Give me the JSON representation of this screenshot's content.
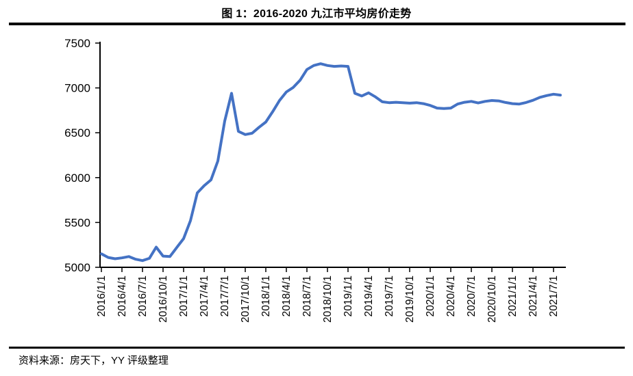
{
  "title": "图 1：2016-2020 九江市平均房价走势",
  "footer": {
    "source": "资料来源：房天下，YY 评级整理"
  },
  "chart_data": {
    "type": "line",
    "title": "图 1：2016-2020 九江市平均房价走势",
    "xlabel": "",
    "ylabel": "",
    "ylim": [
      5000,
      7500
    ],
    "yticks": [
      5000,
      5500,
      6000,
      6500,
      7000,
      7500
    ],
    "grid": false,
    "legend_position": "none",
    "x_start": "2016/1/1",
    "x_frequency": "monthly",
    "x_tick_labels": [
      "2016/1/1",
      "2016/4/1",
      "2016/7/1",
      "2016/10/1",
      "2017/1/1",
      "2017/4/1",
      "2017/7/1",
      "2017/10/1",
      "2018/1/1",
      "2018/4/1",
      "2018/7/1",
      "2018/10/1",
      "2019/1/1",
      "2019/4/1",
      "2019/7/1",
      "2019/10/1",
      "2020/1/1",
      "2020/4/1",
      "2020/7/1",
      "2020/10/1",
      "2021/1/1",
      "2021/4/1",
      "2021/7/1"
    ],
    "series": [
      {
        "name": "九江市平均房价",
        "color": "#4472C4",
        "values": [
          5150,
          5110,
          5095,
          5105,
          5120,
          5090,
          5075,
          5100,
          5225,
          5125,
          5120,
          5220,
          5320,
          5520,
          5830,
          5910,
          5975,
          6185,
          6630,
          6940,
          6515,
          6480,
          6495,
          6560,
          6620,
          6735,
          6860,
          6955,
          7005,
          7085,
          7205,
          7250,
          7270,
          7250,
          7240,
          7245,
          7240,
          6940,
          6910,
          6945,
          6900,
          6845,
          6835,
          6840,
          6835,
          6830,
          6835,
          6825,
          6805,
          6775,
          6770,
          6775,
          6820,
          6840,
          6850,
          6832,
          6850,
          6860,
          6855,
          6838,
          6825,
          6820,
          6838,
          6862,
          6895,
          6915,
          6930,
          6920
        ]
      }
    ]
  }
}
